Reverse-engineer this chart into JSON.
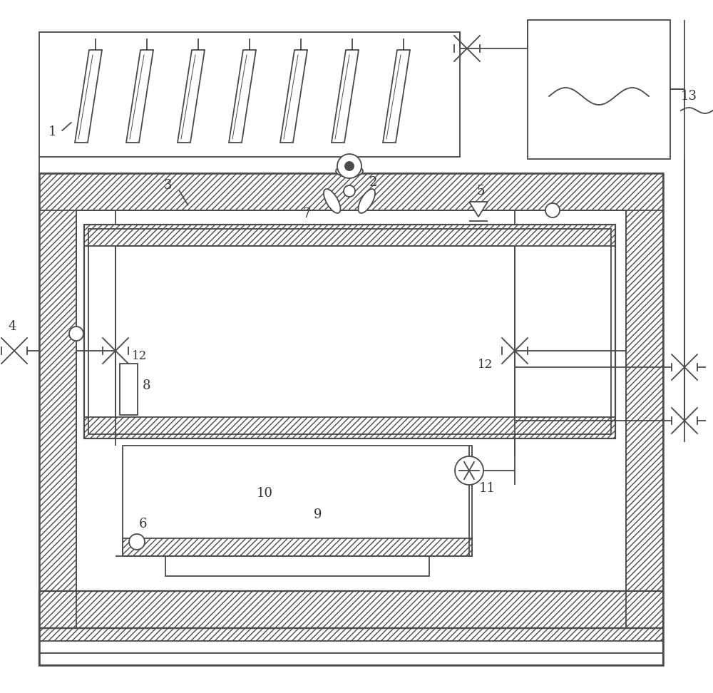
{
  "bg_color": "#ffffff",
  "line_color": "#4a4a4a",
  "label_color": "#333333",
  "fig_width": 10.0,
  "fig_height": 9.72,
  "dpi": 100
}
